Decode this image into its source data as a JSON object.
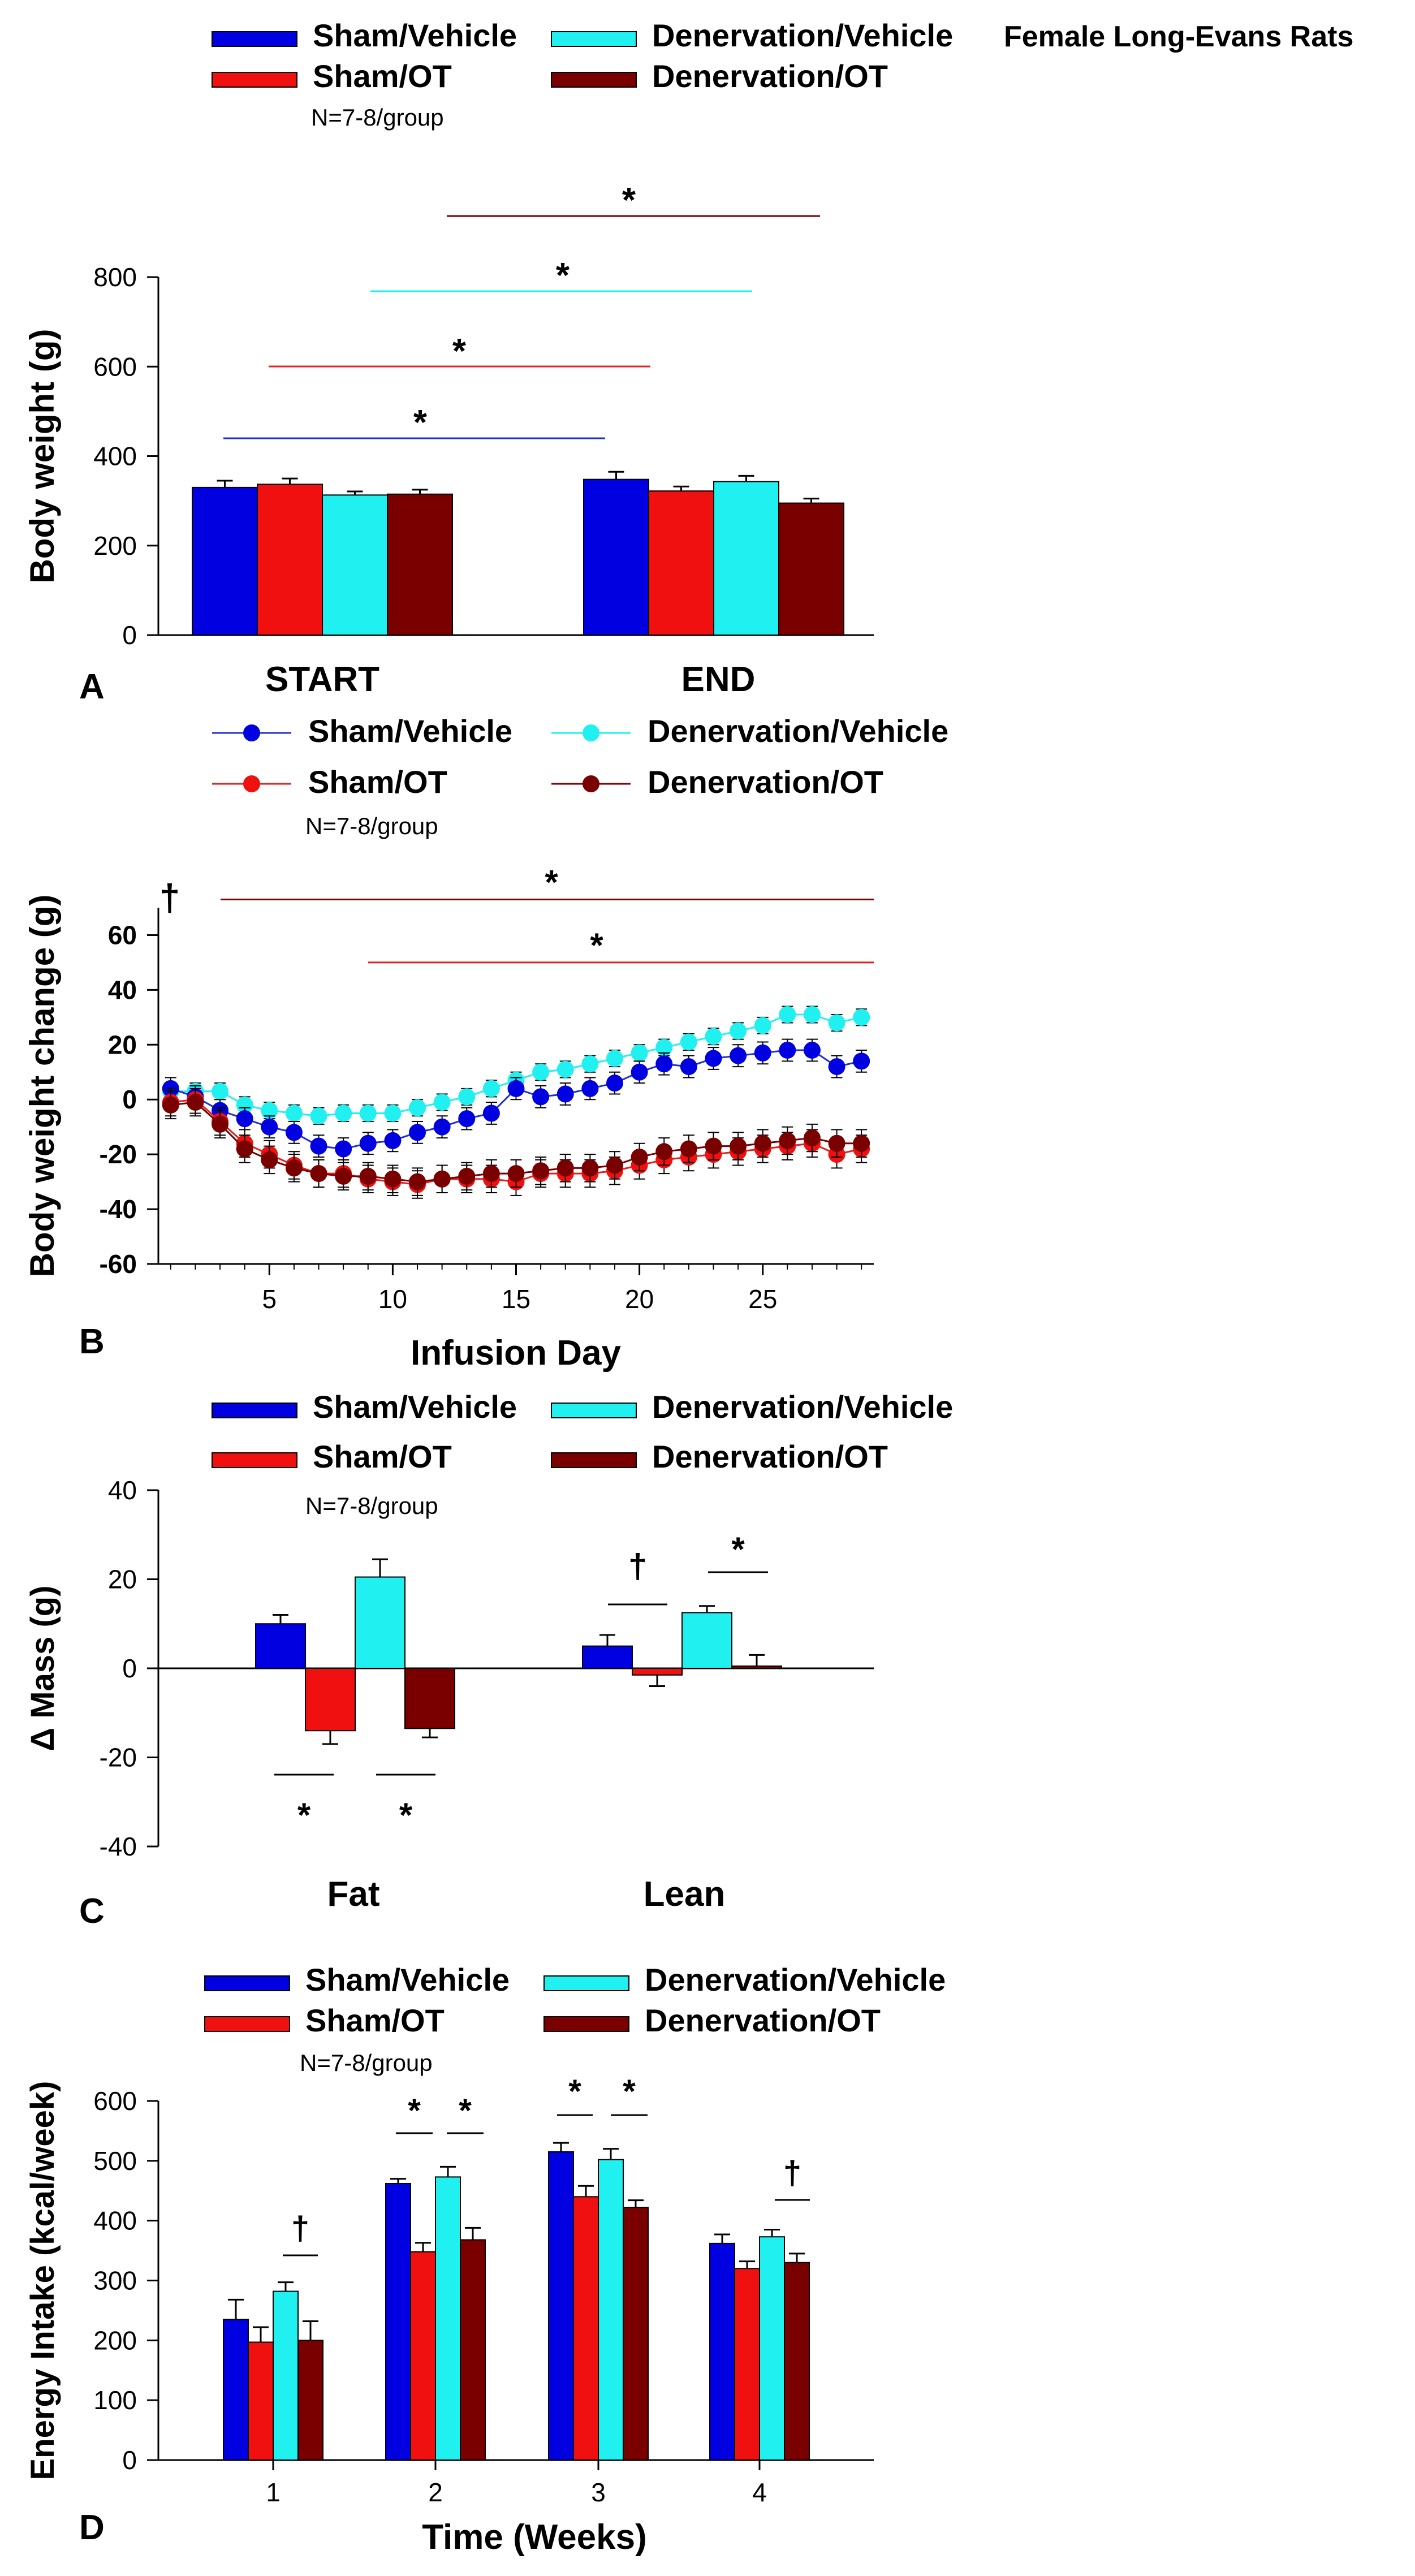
{
  "header_note": "Female Long-Evans Rats",
  "group_n": "N=7-8/group",
  "colors": {
    "sham_vehicle": "#0000e0",
    "sham_ot": "#f01010",
    "den_vehicle": "#20f0f0",
    "den_ot": "#7a0000",
    "sham_vehicle_line": "#2030d0",
    "sham_ot_line": "#e02020"
  },
  "legend": {
    "sham_vehicle": "Sham/Vehicle",
    "den_vehicle": "Denervation/Vehicle",
    "sham_ot": "Sham/OT",
    "den_ot": "Denervation/OT"
  },
  "chart_data": [
    {
      "panel": "A",
      "type": "bar",
      "title": "",
      "ylabel": "Body weight (g)",
      "xlabel": "",
      "ylim": [
        0,
        800
      ],
      "yticks": [
        0,
        200,
        400,
        600,
        800
      ],
      "categories": [
        "START",
        "END"
      ],
      "series": [
        {
          "name": "Sham/Vehicle",
          "values": [
            330,
            348
          ],
          "errors": [
            15,
            17
          ]
        },
        {
          "name": "Sham/OT",
          "values": [
            337,
            322
          ],
          "errors": [
            13,
            10
          ]
        },
        {
          "name": "Denervation/Vehicle",
          "values": [
            313,
            343
          ],
          "errors": [
            8,
            13
          ]
        },
        {
          "name": "Denervation/OT",
          "values": [
            315,
            295
          ],
          "errors": [
            10,
            10
          ]
        }
      ],
      "sig_lines": [
        {
          "label": "*",
          "y": 440,
          "x_from": 0.14,
          "x_to": 0.77,
          "color": "#2030d0"
        },
        {
          "label": "*",
          "y": 600,
          "x_from": 0.27,
          "x_to": 0.77,
          "color": "#e02020"
        },
        {
          "label": "*",
          "y": 770,
          "x_from": 0.4,
          "x_to": 0.77,
          "color": "#20f0f0"
        },
        {
          "label": "*",
          "y": 935,
          "x_from": 0.55,
          "x_to": 0.77,
          "color": "#7a0000"
        }
      ]
    },
    {
      "panel": "B",
      "type": "line",
      "title": "",
      "xlabel": "Infusion Day",
      "ylabel": "Body weight change (g)",
      "xlim": [
        0.5,
        29.5
      ],
      "ylim": [
        -60,
        70
      ],
      "xticks": [
        5,
        10,
        15,
        20,
        25
      ],
      "yticks": [
        -60,
        -40,
        -20,
        0,
        20,
        40,
        60
      ],
      "x": [
        1,
        2,
        3,
        4,
        5,
        6,
        7,
        8,
        9,
        10,
        11,
        12,
        13,
        14,
        15,
        16,
        17,
        18,
        19,
        20,
        21,
        22,
        23,
        24,
        25,
        26,
        27,
        28,
        29
      ],
      "series": [
        {
          "name": "Sham/Vehicle",
          "values": [
            4,
            1,
            -4,
            -7,
            -10,
            -12,
            -17,
            -18,
            -16,
            -15,
            -12,
            -10,
            -7,
            -5,
            4,
            1,
            2,
            4,
            6,
            10,
            13,
            12,
            15,
            16,
            17,
            18,
            18,
            12,
            14
          ],
          "error": 4
        },
        {
          "name": "Sham/OT",
          "values": [
            -1,
            0,
            -8,
            -16,
            -20,
            -24,
            -27,
            -27,
            -29,
            -30,
            -31,
            -29,
            -29,
            -29,
            -30,
            -27,
            -27,
            -27,
            -26,
            -24,
            -22,
            -21,
            -20,
            -19,
            -18,
            -17,
            -16,
            -20,
            -18
          ],
          "error": 5
        },
        {
          "name": "Denervation/Vehicle",
          "values": [
            3,
            3,
            3,
            -2,
            -4,
            -5,
            -6,
            -5,
            -5,
            -5,
            -3,
            -1,
            1,
            4,
            7,
            10,
            11,
            13,
            15,
            17,
            19,
            21,
            23,
            25,
            27,
            31,
            31,
            28,
            30
          ],
          "error": 3
        },
        {
          "name": "Denervation/OT",
          "values": [
            -2,
            -1,
            -9,
            -18,
            -22,
            -25,
            -27,
            -28,
            -28,
            -29,
            -30,
            -29,
            -28,
            -27,
            -27,
            -26,
            -25,
            -25,
            -24,
            -21,
            -19,
            -18,
            -17,
            -17,
            -16,
            -15,
            -14,
            -16,
            -16
          ],
          "error": 5
        }
      ],
      "sig_lines": [
        {
          "label": "*",
          "y": 73,
          "x_from": 3,
          "x_to": 29.5,
          "color": "#7a0000"
        },
        {
          "label": "*",
          "y": 50,
          "x_from": 9,
          "x_to": 29.5,
          "color": "#e02020"
        }
      ],
      "dagger": "†"
    },
    {
      "panel": "C",
      "type": "bar",
      "title": "",
      "ylabel": "Δ Mass (g)",
      "xlabel": "",
      "ylim": [
        -40,
        40
      ],
      "yticks": [
        -40,
        -20,
        0,
        20,
        40
      ],
      "categories": [
        "Fat",
        "Lean"
      ],
      "series": [
        {
          "name": "Sham/Vehicle",
          "values": [
            10,
            5
          ],
          "errors": [
            2,
            2.5
          ]
        },
        {
          "name": "Sham/OT",
          "values": [
            -14,
            -1.5
          ],
          "errors": [
            3,
            2.5
          ]
        },
        {
          "name": "Denervation/Vehicle",
          "values": [
            20.5,
            12.5
          ],
          "errors": [
            4,
            1.5
          ]
        },
        {
          "name": "Denervation/OT",
          "values": [
            -13.5,
            0.5
          ],
          "errors": [
            2,
            2.5
          ]
        }
      ],
      "annotations": [
        {
          "label": "*",
          "category": 0,
          "pair": "sham",
          "y": -23.5,
          "below": true
        },
        {
          "label": "*",
          "category": 0,
          "pair": "den",
          "y": -23.5,
          "below": true
        },
        {
          "label": "†",
          "category": 1,
          "pair": "sham",
          "y": 14
        },
        {
          "label": "*",
          "category": 1,
          "pair": "den",
          "y": 22
        }
      ]
    },
    {
      "panel": "D",
      "type": "bar",
      "title": "",
      "xlabel": "Time (Weeks)",
      "ylabel": "Energy Intake (kcal/week)",
      "ylim": [
        0,
        600
      ],
      "yticks": [
        0,
        100,
        200,
        300,
        400,
        500,
        600
      ],
      "categories": [
        "1",
        "2",
        "3",
        "4"
      ],
      "series": [
        {
          "name": "Sham/Vehicle",
          "values": [
            235,
            462,
            515,
            362
          ],
          "errors": [
            33,
            8,
            15,
            15
          ]
        },
        {
          "name": "Sham/OT",
          "values": [
            197,
            348,
            440,
            320
          ],
          "errors": [
            25,
            15,
            18,
            12
          ]
        },
        {
          "name": "Denervation/Vehicle",
          "values": [
            282,
            473,
            502,
            373
          ],
          "errors": [
            15,
            17,
            18,
            12
          ]
        },
        {
          "name": "Denervation/OT",
          "values": [
            200,
            368,
            422,
            330
          ],
          "errors": [
            32,
            20,
            12,
            15
          ]
        }
      ],
      "annotations": [
        {
          "label": "†",
          "category": 0,
          "pair": "den",
          "y": 340
        },
        {
          "label": "*",
          "category": 1,
          "pair": "sham",
          "y": 535
        },
        {
          "label": "*",
          "category": 1,
          "pair": "den",
          "y": 535
        },
        {
          "label": "*",
          "category": 2,
          "pair": "sham",
          "y": 575
        },
        {
          "label": "*",
          "category": 2,
          "pair": "den",
          "y": 575
        },
        {
          "label": "†",
          "category": 3,
          "pair": "den",
          "y": 432
        }
      ]
    }
  ],
  "panel_labels": {
    "A": "A",
    "B": "B",
    "C": "C",
    "D": "D"
  }
}
